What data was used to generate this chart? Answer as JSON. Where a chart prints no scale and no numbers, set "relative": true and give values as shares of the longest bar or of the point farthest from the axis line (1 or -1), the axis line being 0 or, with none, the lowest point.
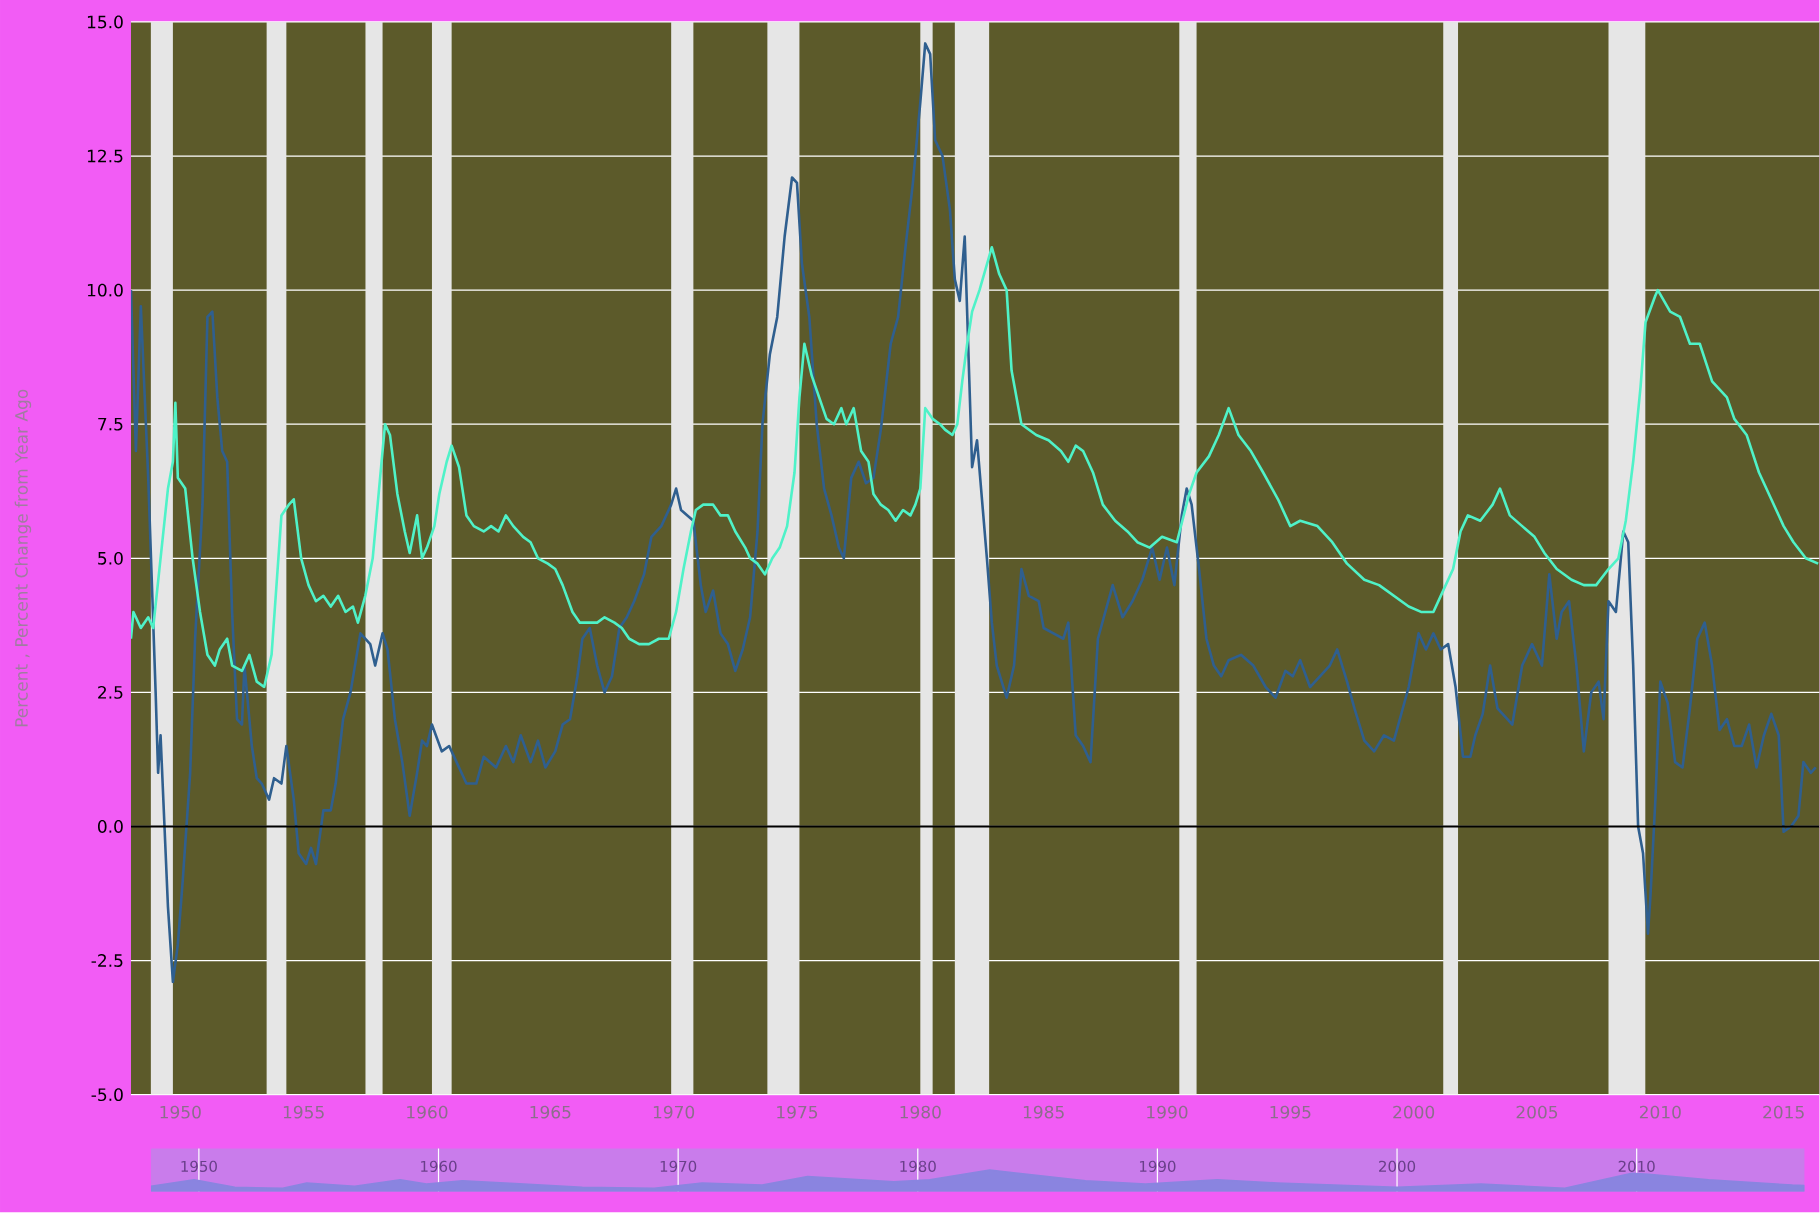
{
  "chart_data": [
    {
      "type": "line",
      "ylabel": "Percent , Percent Change from Year Ago",
      "xlim": [
        1948.0,
        2016.45
      ],
      "ylim": [
        -5,
        15
      ],
      "xticks": [
        1950,
        1955,
        1960,
        1965,
        1970,
        1975,
        1980,
        1985,
        1990,
        1995,
        2000,
        2005,
        2010,
        2015
      ],
      "yticks": [
        {
          "value": -5,
          "label": "-5.0"
        },
        {
          "value": -2.5,
          "label": "-2.5"
        },
        {
          "value": 0,
          "label": "0.0"
        },
        {
          "value": 2.5,
          "label": "2.5"
        },
        {
          "value": 5,
          "label": "5.0"
        },
        {
          "value": 7.5,
          "label": "7.5"
        },
        {
          "value": 10,
          "label": "10.0"
        },
        {
          "value": 12.5,
          "label": "12.5"
        },
        {
          "value": 15,
          "label": "15.0"
        }
      ],
      "grid": "y",
      "bands": [
        {
          "axis": "x",
          "from": 1948.8,
          "to": 1949.7,
          "color": "#e6e6e6"
        },
        {
          "axis": "x",
          "from": 1953.5,
          "to": 1954.3,
          "color": "#e6e6e6"
        },
        {
          "axis": "x",
          "from": 1957.5,
          "to": 1958.2,
          "color": "#e6e6e6"
        },
        {
          "axis": "x",
          "from": 1960.2,
          "to": 1961.0,
          "color": "#e6e6e6"
        },
        {
          "axis": "x",
          "from": 1969.9,
          "to": 1970.8,
          "color": "#e6e6e6"
        },
        {
          "axis": "x",
          "from": 1973.8,
          "to": 1975.1,
          "color": "#e6e6e6"
        },
        {
          "axis": "x",
          "from": 1980.0,
          "to": 1980.5,
          "color": "#e6e6e6"
        },
        {
          "axis": "x",
          "from": 1981.4,
          "to": 1982.8,
          "color": "#e6e6e6"
        },
        {
          "axis": "x",
          "from": 1990.5,
          "to": 1991.2,
          "color": "#e6e6e6"
        },
        {
          "axis": "x",
          "from": 2001.2,
          "to": 2001.8,
          "color": "#e6e6e6"
        },
        {
          "axis": "x",
          "from": 2007.9,
          "to": 2009.4,
          "color": "#e6e6e6"
        }
      ],
      "ref_lines": [
        {
          "axis": "y",
          "value": 0,
          "color": "#000000"
        }
      ],
      "series": [
        {
          "color": "#2f5f8f",
          "x": [
            1948.0,
            1948.2,
            1948.4,
            1948.7,
            1949.0,
            1949.1,
            1949.2,
            1949.5,
            1949.7,
            1949.9,
            1950.1,
            1950.4,
            1950.6,
            1950.9,
            1951.1,
            1951.3,
            1951.5,
            1951.7,
            1951.9,
            1952.1,
            1952.3,
            1952.5,
            1952.6,
            1952.9,
            1953.1,
            1953.3,
            1953.6,
            1953.8,
            1954.1,
            1954.3,
            1954.6,
            1954.8,
            1955.1,
            1955.3,
            1955.5,
            1955.8,
            1956.1,
            1956.3,
            1956.6,
            1956.9,
            1957.3,
            1957.7,
            1957.9,
            1958.2,
            1958.4,
            1958.7,
            1959.0,
            1959.3,
            1959.6,
            1959.8,
            1960.0,
            1960.2,
            1960.6,
            1960.9,
            1961.2,
            1961.6,
            1962.0,
            1962.3,
            1962.8,
            1963.2,
            1963.5,
            1963.8,
            1964.2,
            1964.5,
            1964.8,
            1965.2,
            1965.5,
            1965.8,
            1966.1,
            1966.3,
            1966.6,
            1966.9,
            1967.2,
            1967.5,
            1967.8,
            1968.1,
            1968.4,
            1968.8,
            1969.1,
            1969.5,
            1969.9,
            1970.1,
            1970.3,
            1970.8,
            1971.1,
            1971.3,
            1971.6,
            1971.9,
            1972.2,
            1972.5,
            1972.8,
            1973.1,
            1973.4,
            1973.6,
            1973.9,
            1974.2,
            1974.5,
            1974.8,
            1975.0,
            1975.2,
            1975.5,
            1975.8,
            1976.1,
            1976.4,
            1976.7,
            1976.9,
            1977.2,
            1977.5,
            1977.8,
            1978.1,
            1978.4,
            1978.8,
            1979.1,
            1979.4,
            1979.7,
            1980.0,
            1980.2,
            1980.4,
            1980.6,
            1980.9,
            1981.2,
            1981.4,
            1981.6,
            1981.8,
            1982.1,
            1982.3,
            1982.7,
            1982.9,
            1983.1,
            1983.5,
            1983.8,
            1984.1,
            1984.4,
            1984.8,
            1985.0,
            1985.4,
            1985.8,
            1986.0,
            1986.3,
            1986.6,
            1986.9,
            1987.2,
            1987.5,
            1987.8,
            1988.2,
            1988.6,
            1989.0,
            1989.4,
            1989.7,
            1990.0,
            1990.3,
            1990.6,
            1990.8,
            1991.0,
            1991.3,
            1991.6,
            1991.9,
            1992.2,
            1992.5,
            1993.0,
            1993.5,
            1994.0,
            1994.4,
            1994.8,
            1995.1,
            1995.4,
            1995.8,
            1996.2,
            1996.6,
            1996.9,
            1997.3,
            1997.6,
            1998.0,
            1998.4,
            1998.8,
            1999.2,
            1999.5,
            1999.8,
            2000.2,
            2000.5,
            2000.8,
            2001.1,
            2001.4,
            2001.7,
            2002.0,
            2002.3,
            2002.5,
            2002.8,
            2003.1,
            2003.4,
            2003.8,
            2004.0,
            2004.4,
            2004.8,
            2005.2,
            2005.5,
            2005.8,
            2006.0,
            2006.3,
            2006.6,
            2006.9,
            2007.2,
            2007.5,
            2007.7,
            2007.9,
            2008.2,
            2008.5,
            2008.7,
            2008.9,
            2009.1,
            2009.3,
            2009.5,
            2009.6,
            2009.8,
            2010.0,
            2010.3,
            2010.6,
            2010.9,
            2011.2,
            2011.5,
            2011.8,
            2012.1,
            2012.4,
            2012.7,
            2013.0,
            2013.3,
            2013.6,
            2013.9,
            2014.2,
            2014.5,
            2014.8,
            2015.0,
            2015.3,
            2015.6,
            2015.8,
            2016.1,
            2016.3
          ],
          "values": [
            10.0,
            7.0,
            9.7,
            6.5,
            2.5,
            1.0,
            1.7,
            -1.5,
            -2.9,
            -2.2,
            -1.0,
            1.0,
            3.5,
            6.0,
            9.5,
            9.6,
            8.0,
            7.0,
            6.8,
            4.0,
            2.0,
            1.9,
            3.0,
            1.5,
            0.9,
            0.8,
            0.5,
            0.9,
            0.8,
            1.5,
            0.5,
            -0.5,
            -0.7,
            -0.4,
            -0.7,
            0.3,
            0.3,
            0.8,
            2.0,
            2.5,
            3.6,
            3.4,
            3.0,
            3.6,
            3.3,
            2.0,
            1.2,
            0.2,
            1.0,
            1.6,
            1.5,
            1.9,
            1.4,
            1.5,
            1.2,
            0.8,
            0.8,
            1.3,
            1.1,
            1.5,
            1.2,
            1.7,
            1.2,
            1.6,
            1.1,
            1.4,
            1.9,
            2.0,
            2.8,
            3.5,
            3.7,
            3.0,
            2.5,
            2.8,
            3.7,
            3.9,
            4.2,
            4.7,
            5.4,
            5.6,
            6.0,
            6.3,
            5.9,
            5.7,
            4.5,
            4.0,
            4.4,
            3.6,
            3.4,
            2.9,
            3.3,
            3.9,
            5.5,
            7.5,
            8.8,
            9.5,
            11.0,
            12.1,
            12.0,
            10.5,
            9.5,
            7.5,
            6.3,
            5.8,
            5.2,
            5.0,
            6.5,
            6.8,
            6.4,
            6.5,
            7.4,
            9.0,
            9.5,
            10.8,
            12.0,
            13.5,
            14.6,
            14.4,
            12.8,
            12.5,
            11.5,
            10.2,
            9.8,
            11.0,
            6.7,
            7.2,
            5.0,
            3.8,
            3.0,
            2.4,
            3.0,
            4.8,
            4.3,
            4.2,
            3.7,
            3.6,
            3.5,
            3.8,
            1.7,
            1.5,
            1.2,
            3.5,
            4.0,
            4.5,
            3.9,
            4.2,
            4.6,
            5.2,
            4.6,
            5.2,
            4.5,
            5.8,
            6.3,
            6.0,
            4.8,
            3.5,
            3.0,
            2.8,
            3.1,
            3.2,
            3.0,
            2.6,
            2.4,
            2.9,
            2.8,
            3.1,
            2.6,
            2.8,
            3.0,
            3.3,
            2.7,
            2.2,
            1.6,
            1.4,
            1.7,
            1.6,
            2.1,
            2.6,
            3.6,
            3.3,
            3.6,
            3.3,
            3.4,
            2.6,
            1.3,
            1.3,
            1.7,
            2.1,
            3.0,
            2.2,
            2.0,
            1.9,
            3.0,
            3.4,
            3.0,
            4.7,
            3.5,
            4.0,
            4.2,
            3.0,
            1.4,
            2.5,
            2.7,
            2.0,
            4.2,
            4.0,
            5.5,
            5.3,
            3.0,
            0.0,
            -0.5,
            -2.0,
            -1.3,
            0.5,
            2.7,
            2.3,
            1.2,
            1.1,
            2.2,
            3.5,
            3.8,
            3.0,
            1.8,
            2.0,
            1.5,
            1.5,
            1.9,
            1.1,
            1.7,
            2.1,
            1.7,
            -0.1,
            0.0,
            0.2,
            1.2,
            1.0,
            1.1
          ]
        },
        {
          "color": "#4ff2c8",
          "x": [
            1948.0,
            1948.1,
            1948.4,
            1948.7,
            1948.9,
            1949.2,
            1949.5,
            1949.7,
            1949.8,
            1949.9,
            1950.2,
            1950.5,
            1950.8,
            1951.1,
            1951.4,
            1951.6,
            1951.9,
            1952.1,
            1952.5,
            1952.8,
            1953.1,
            1953.4,
            1953.7,
            1953.9,
            1954.1,
            1954.4,
            1954.6,
            1954.9,
            1955.2,
            1955.5,
            1955.8,
            1956.1,
            1956.4,
            1956.7,
            1957.0,
            1957.2,
            1957.5,
            1957.8,
            1958.1,
            1958.3,
            1958.5,
            1958.8,
            1959.1,
            1959.3,
            1959.6,
            1959.8,
            1960.0,
            1960.3,
            1960.5,
            1960.8,
            1961.0,
            1961.3,
            1961.6,
            1961.9,
            1962.3,
            1962.6,
            1962.9,
            1963.2,
            1963.5,
            1963.9,
            1964.2,
            1964.5,
            1964.9,
            1965.2,
            1965.5,
            1965.9,
            1966.2,
            1966.6,
            1966.9,
            1967.2,
            1967.6,
            1967.9,
            1968.2,
            1968.6,
            1969.0,
            1969.4,
            1969.8,
            1970.1,
            1970.4,
            1970.7,
            1970.9,
            1971.2,
            1971.6,
            1971.9,
            1972.2,
            1972.5,
            1972.9,
            1973.1,
            1973.4,
            1973.7,
            1974.0,
            1974.3,
            1974.6,
            1974.9,
            1975.1,
            1975.3,
            1975.6,
            1975.9,
            1976.2,
            1976.5,
            1976.8,
            1977.0,
            1977.3,
            1977.6,
            1977.9,
            1978.1,
            1978.4,
            1978.7,
            1979.0,
            1979.3,
            1979.6,
            1979.8,
            1980.0,
            1980.2,
            1980.5,
            1980.8,
            1981.0,
            1981.3,
            1981.5,
            1981.7,
            1981.9,
            1982.1,
            1982.4,
            1982.9,
            1983.2,
            1983.5,
            1983.7,
            1984.1,
            1984.4,
            1984.7,
            1985.2,
            1985.7,
            1986.0,
            1986.3,
            1986.6,
            1987.0,
            1987.4,
            1987.9,
            1988.4,
            1988.8,
            1989.3,
            1989.8,
            1990.4,
            1990.9,
            1991.2,
            1991.7,
            1992.1,
            1992.5,
            1992.9,
            1993.4,
            1993.9,
            1994.5,
            1995.0,
            1995.4,
            1996.1,
            1996.7,
            1997.3,
            1998.0,
            1998.6,
            1999.2,
            1999.8,
            2000.3,
            2000.8,
            2001.1,
            2001.6,
            2001.9,
            2002.2,
            2002.7,
            2003.2,
            2003.5,
            2003.9,
            2004.4,
            2004.9,
            2005.3,
            2005.8,
            2006.4,
            2006.9,
            2007.4,
            2007.9,
            2008.3,
            2008.6,
            2008.9,
            2009.2,
            2009.4,
            2009.8,
            2009.9,
            2010.4,
            2010.8,
            2011.2,
            2011.6,
            2012.1,
            2012.7,
            2013.0,
            2013.5,
            2014.0,
            2014.5,
            2015.0,
            2015.4,
            2015.9,
            2016.4
          ],
          "values": [
            3.5,
            4.0,
            3.7,
            3.9,
            3.7,
            5.0,
            6.3,
            6.8,
            7.9,
            6.5,
            6.3,
            5.0,
            4.0,
            3.2,
            3.0,
            3.3,
            3.5,
            3.0,
            2.9,
            3.2,
            2.7,
            2.6,
            3.2,
            4.5,
            5.8,
            6.0,
            6.1,
            5.0,
            4.5,
            4.2,
            4.3,
            4.1,
            4.3,
            4.0,
            4.1,
            3.8,
            4.3,
            5.0,
            6.5,
            7.5,
            7.3,
            6.2,
            5.5,
            5.1,
            5.8,
            5.0,
            5.2,
            5.6,
            6.2,
            6.8,
            7.1,
            6.7,
            5.8,
            5.6,
            5.5,
            5.6,
            5.5,
            5.8,
            5.6,
            5.4,
            5.3,
            5.0,
            4.9,
            4.8,
            4.5,
            4.0,
            3.8,
            3.8,
            3.8,
            3.9,
            3.8,
            3.7,
            3.5,
            3.4,
            3.4,
            3.5,
            3.5,
            4.0,
            4.8,
            5.5,
            5.9,
            6.0,
            6.0,
            5.8,
            5.8,
            5.5,
            5.2,
            5.0,
            4.9,
            4.7,
            5.0,
            5.2,
            5.6,
            6.6,
            8.0,
            9.0,
            8.4,
            8.0,
            7.6,
            7.5,
            7.8,
            7.5,
            7.8,
            7.0,
            6.8,
            6.2,
            6.0,
            5.9,
            5.7,
            5.9,
            5.8,
            6.0,
            6.3,
            7.8,
            7.6,
            7.5,
            7.4,
            7.3,
            7.5,
            8.3,
            9.0,
            9.6,
            10.0,
            10.8,
            10.3,
            10.0,
            8.5,
            7.5,
            7.4,
            7.3,
            7.2,
            7.0,
            6.8,
            7.1,
            7.0,
            6.6,
            6.0,
            5.7,
            5.5,
            5.3,
            5.2,
            5.4,
            5.3,
            6.2,
            6.6,
            6.9,
            7.3,
            7.8,
            7.3,
            7.0,
            6.6,
            6.1,
            5.6,
            5.7,
            5.6,
            5.3,
            4.9,
            4.6,
            4.5,
            4.3,
            4.1,
            4.0,
            4.0,
            4.3,
            4.8,
            5.5,
            5.8,
            5.7,
            6.0,
            6.3,
            5.8,
            5.6,
            5.4,
            5.1,
            4.8,
            4.6,
            4.5,
            4.5,
            4.8,
            5.0,
            5.7,
            6.8,
            8.2,
            9.4,
            9.9,
            10.0,
            9.6,
            9.5,
            9.0,
            9.0,
            8.3,
            8.0,
            7.6,
            7.3,
            6.6,
            6.1,
            5.6,
            5.3,
            5.0,
            4.9
          ]
        }
      ]
    },
    {
      "type": "area",
      "relative": true,
      "xlim": [
        1948.0,
        2017.0
      ],
      "xticks": [
        1950,
        1960,
        1970,
        1980,
        1990,
        2000,
        2010
      ],
      "grid": "x",
      "series": [
        {
          "color": "#8a84e0",
          "x": [
            1948.0,
            1949.8,
            1951.5,
            1953.5,
            1954.5,
            1956.5,
            1958.4,
            1959.5,
            1961.0,
            1963.0,
            1966.0,
            1969.0,
            1971.0,
            1973.5,
            1975.4,
            1979.0,
            1980.5,
            1983.0,
            1987.0,
            1989.5,
            1992.5,
            1995.0,
            2000.0,
            2003.5,
            2007.0,
            2009.8,
            2010.5,
            2013.0,
            2016.5,
            2017.0
          ],
          "values": [
            0.25,
            0.55,
            0.2,
            0.15,
            0.4,
            0.25,
            0.55,
            0.35,
            0.5,
            0.38,
            0.2,
            0.15,
            0.4,
            0.3,
            0.7,
            0.45,
            0.55,
            1.0,
            0.5,
            0.35,
            0.55,
            0.4,
            0.2,
            0.35,
            0.15,
            0.85,
            0.8,
            0.55,
            0.3,
            0.28
          ]
        }
      ]
    }
  ]
}
